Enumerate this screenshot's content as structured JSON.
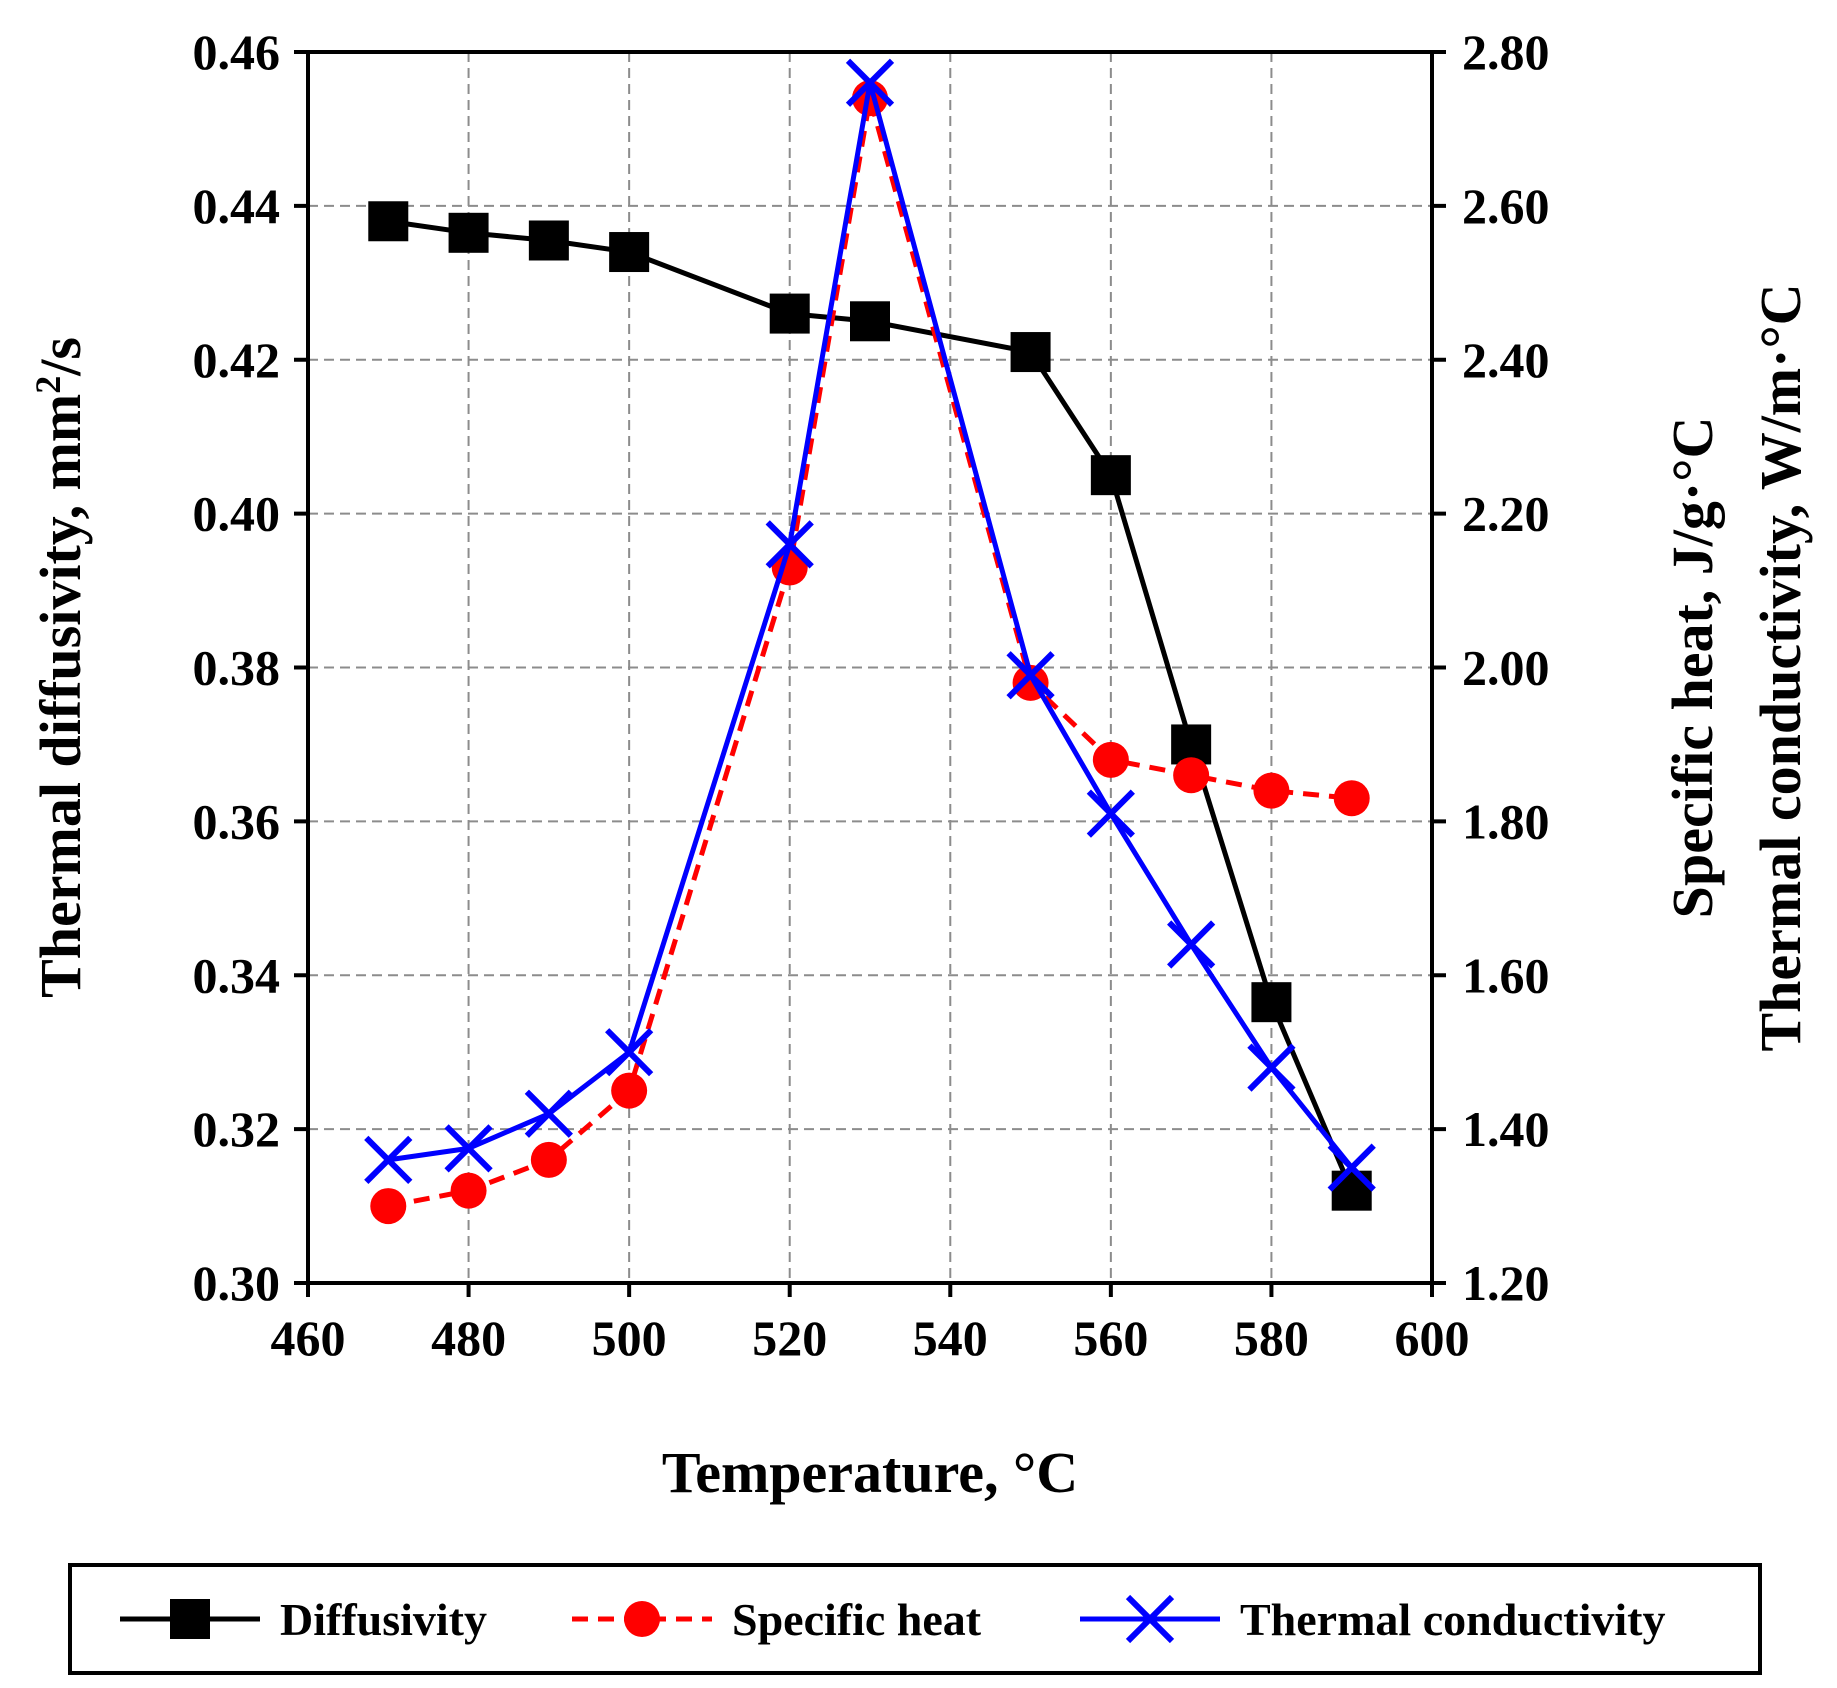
{
  "chart_data": {
    "type": "line",
    "title": "",
    "xlabel": "Temperature, °C",
    "ylabel_left": "Thermal diffusivity, mm²/s",
    "ylabel_left_main": "Thermal diffusivity, mm",
    "ylabel_left_sup": "2",
    "ylabel_left_tail": "/s",
    "ylabel_right_1": "Specific heat, J/g·°C",
    "ylabel_right_2": "Thermal conductivity, W/m·°C",
    "xlim": [
      460,
      600
    ],
    "ylim_left": [
      0.3,
      0.46
    ],
    "ylim_right": [
      1.2,
      2.8
    ],
    "x_ticks": [
      "460",
      "480",
      "500",
      "520",
      "540",
      "560",
      "580",
      "600"
    ],
    "y_left_ticks": [
      "0.30",
      "0.32",
      "0.34",
      "0.36",
      "0.38",
      "0.40",
      "0.42",
      "0.44",
      "0.46"
    ],
    "y_right_ticks": [
      "1.20",
      "1.40",
      "1.60",
      "1.80",
      "2.00",
      "2.20",
      "2.40",
      "2.60",
      "2.80"
    ],
    "grid": true,
    "legend_position": "bottom",
    "series": [
      {
        "name": "Diffusivity",
        "axis": "left",
        "color": "#000000",
        "marker": "square",
        "line": "solid",
        "x": [
          470,
          480,
          490,
          500,
          520,
          530,
          550,
          560,
          570,
          580,
          590
        ],
        "values": [
          0.438,
          0.4365,
          0.4355,
          0.434,
          0.426,
          0.425,
          0.421,
          0.405,
          0.37,
          0.3365,
          0.312
        ]
      },
      {
        "name": "Specific heat",
        "axis": "right",
        "color": "#ff0000",
        "marker": "circle",
        "line": "dashed",
        "x": [
          470,
          480,
          490,
          500,
          520,
          530,
          550,
          560,
          570,
          580,
          590
        ],
        "values": [
          1.3,
          1.32,
          1.36,
          1.45,
          2.13,
          2.74,
          1.98,
          1.88,
          1.86,
          1.84,
          1.83
        ]
      },
      {
        "name": "Thermal conductivity",
        "axis": "right",
        "color": "#0000ff",
        "marker": "x",
        "line": "solid",
        "x": [
          470,
          480,
          490,
          500,
          520,
          530,
          550,
          560,
          570,
          580,
          590
        ],
        "values": [
          1.36,
          1.375,
          1.42,
          1.5,
          2.16,
          2.76,
          1.99,
          1.81,
          1.64,
          1.48,
          1.35
        ]
      }
    ]
  }
}
